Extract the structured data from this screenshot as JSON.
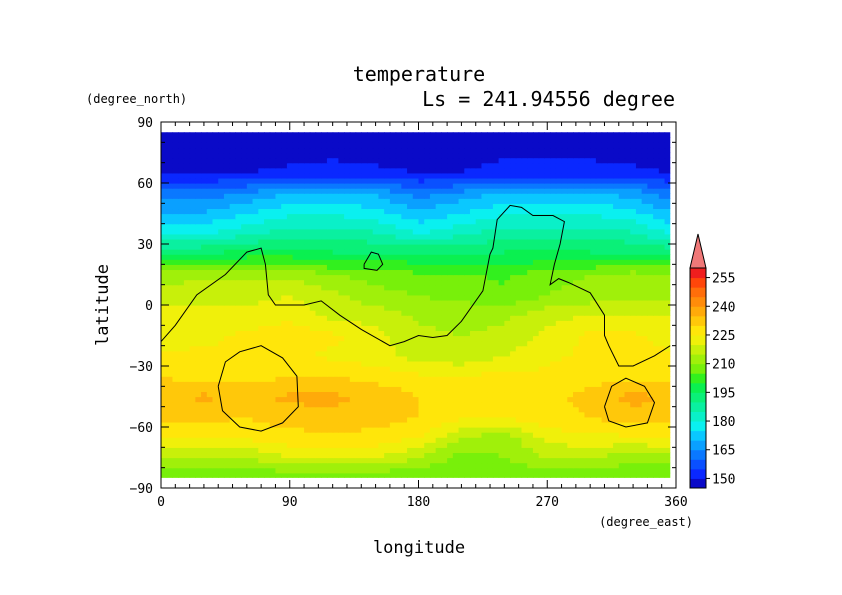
{
  "chart_data": {
    "type": "heatmap",
    "title": "temperature",
    "subtitle": "Ls = 241.94556 degree",
    "xlabel": "longitude",
    "ylabel": "latitude",
    "x_units": "(degree_east)",
    "y_units": "(degree_north)",
    "xlim": [
      0,
      360
    ],
    "ylim": [
      -90,
      90
    ],
    "data_extent": {
      "lon": [
        0,
        356
      ],
      "lat": [
        -85,
        85
      ]
    },
    "x_ticks": [
      0,
      90,
      180,
      270,
      360
    ],
    "y_ticks": [
      -90,
      -60,
      -30,
      0,
      30,
      60,
      90
    ],
    "x_tick_labels": [
      "0",
      "90",
      "180",
      "270",
      "360"
    ],
    "y_tick_labels": [
      "−90",
      "−60",
      "−30",
      "0",
      "30",
      "60",
      "90"
    ],
    "colorbar": {
      "levels": [
        145,
        150,
        155,
        160,
        165,
        170,
        175,
        180,
        185,
        190,
        195,
        200,
        205,
        210,
        215,
        220,
        225,
        230,
        235,
        240,
        245,
        250,
        255,
        260
      ],
      "colors": [
        "#0a0ac8",
        "#0a28ff",
        "#0a50ff",
        "#0a78ff",
        "#0aa0ff",
        "#0ac8ff",
        "#0af0f0",
        "#0af0c8",
        "#0af0a0",
        "#0af078",
        "#0af050",
        "#32f01e",
        "#78f00a",
        "#a0f00a",
        "#c8f00a",
        "#f0f00a",
        "#ffe60a",
        "#ffc80a",
        "#ffaa0a",
        "#ff8c0a",
        "#ff6e0a",
        "#ff460a",
        "#f01e1e"
      ],
      "tick_labels": [
        "150",
        "165",
        "180",
        "195",
        "210",
        "225",
        "240",
        "255"
      ],
      "extend_color": "#f07878",
      "grid": false
    },
    "series": [
      {
        "values": [
          [
            205,
            205,
            205,
            205,
            205,
            205,
            205,
            205,
            205,
            205,
            205,
            205,
            205
          ],
          [
            215,
            215,
            215,
            220,
            220,
            220,
            215,
            208,
            210,
            215,
            215,
            212,
            212
          ],
          [
            224,
            224,
            226,
            228,
            228,
            228,
            225,
            215,
            212,
            222,
            224,
            224,
            226
          ],
          [
            232,
            232,
            230,
            233,
            234,
            233,
            230,
            226,
            226,
            228,
            230,
            233,
            232
          ],
          [
            232,
            236,
            234,
            236,
            236,
            234,
            230,
            228,
            228,
            228,
            232,
            237,
            234
          ],
          [
            230,
            228,
            228,
            230,
            230,
            228,
            226,
            226,
            226,
            226,
            228,
            228,
            228
          ],
          [
            226,
            226,
            225,
            226,
            224,
            222,
            218,
            216,
            220,
            224,
            226,
            228,
            226
          ],
          [
            222,
            224,
            226,
            228,
            226,
            222,
            216,
            215,
            216,
            222,
            226,
            226,
            222
          ],
          [
            222,
            222,
            222,
            224,
            218,
            218,
            214,
            214,
            214,
            218,
            220,
            220,
            220
          ],
          [
            218,
            218,
            218,
            220,
            216,
            212,
            210,
            208,
            206,
            210,
            212,
            214,
            214
          ],
          [
            212,
            214,
            214,
            214,
            210,
            208,
            206,
            206,
            204,
            208,
            210,
            212,
            212
          ],
          [
            195,
            196,
            198,
            198,
            196,
            196,
            196,
            196,
            196,
            196,
            196,
            196,
            195
          ],
          [
            180,
            180,
            184,
            188,
            188,
            186,
            180,
            184,
            188,
            188,
            188,
            186,
            180
          ],
          [
            162,
            162,
            166,
            170,
            171,
            169,
            163,
            167,
            171,
            171,
            171,
            168,
            162
          ],
          [
            150,
            150,
            150,
            151,
            152,
            151,
            150,
            150,
            152,
            152,
            152,
            151,
            150
          ],
          [
            146,
            146,
            146,
            146,
            146,
            146,
            146,
            146,
            146,
            146,
            146,
            146,
            146
          ]
        ]
      }
    ],
    "contour_levels": [
      0
    ],
    "grid_lat": [
      -85,
      -75,
      -65,
      -55,
      -45,
      -35,
      -25,
      -15,
      -5,
      5,
      15,
      25,
      35,
      55,
      65,
      85
    ],
    "grid_lon": [
      0,
      30,
      60,
      90,
      120,
      150,
      180,
      210,
      240,
      270,
      300,
      330,
      356
    ],
    "contours": [
      [
        [
          0,
          -18
        ],
        [
          10,
          -10
        ],
        [
          25,
          5
        ],
        [
          45,
          15
        ],
        [
          60,
          26
        ],
        [
          70,
          28
        ],
        [
          73,
          20
        ],
        [
          75,
          5
        ],
        [
          80,
          0
        ],
        [
          100,
          0
        ],
        [
          112,
          2
        ],
        [
          125,
          -5
        ],
        [
          140,
          -12
        ],
        [
          160,
          -20
        ],
        [
          170,
          -18
        ],
        [
          180,
          -15
        ],
        [
          190,
          -16
        ],
        [
          200,
          -15
        ],
        [
          210,
          -8
        ],
        [
          225,
          7
        ],
        [
          230,
          25
        ],
        [
          232,
          28
        ],
        [
          235,
          42
        ],
        [
          244,
          49
        ],
        [
          252,
          48
        ],
        [
          260,
          44
        ],
        [
          274,
          44
        ],
        [
          282,
          41
        ],
        [
          279,
          30
        ],
        [
          275,
          20
        ],
        [
          272,
          10
        ],
        [
          278,
          13
        ],
        [
          285,
          11
        ],
        [
          300,
          6
        ],
        [
          310,
          -5
        ],
        [
          310,
          -15
        ],
        [
          313,
          -20
        ],
        [
          320,
          -30
        ],
        [
          330,
          -30
        ],
        [
          345,
          -25
        ],
        [
          356,
          -20
        ]
      ],
      [
        [
          142,
          20
        ],
        [
          147,
          26
        ],
        [
          152,
          25
        ],
        [
          155,
          20
        ],
        [
          151,
          17
        ],
        [
          142,
          18
        ],
        [
          142,
          20
        ]
      ],
      [
        [
          40,
          -40
        ],
        [
          45,
          -28
        ],
        [
          55,
          -23
        ],
        [
          70,
          -20
        ],
        [
          85,
          -26
        ],
        [
          95,
          -35
        ],
        [
          96,
          -50
        ],
        [
          85,
          -58
        ],
        [
          70,
          -62
        ],
        [
          55,
          -60
        ],
        [
          43,
          -52
        ],
        [
          40,
          -40
        ]
      ],
      [
        [
          310,
          -50
        ],
        [
          315,
          -40
        ],
        [
          325,
          -36
        ],
        [
          338,
          -40
        ],
        [
          345,
          -48
        ],
        [
          340,
          -58
        ],
        [
          325,
          -60
        ],
        [
          313,
          -57
        ],
        [
          310,
          -50
        ]
      ]
    ]
  }
}
